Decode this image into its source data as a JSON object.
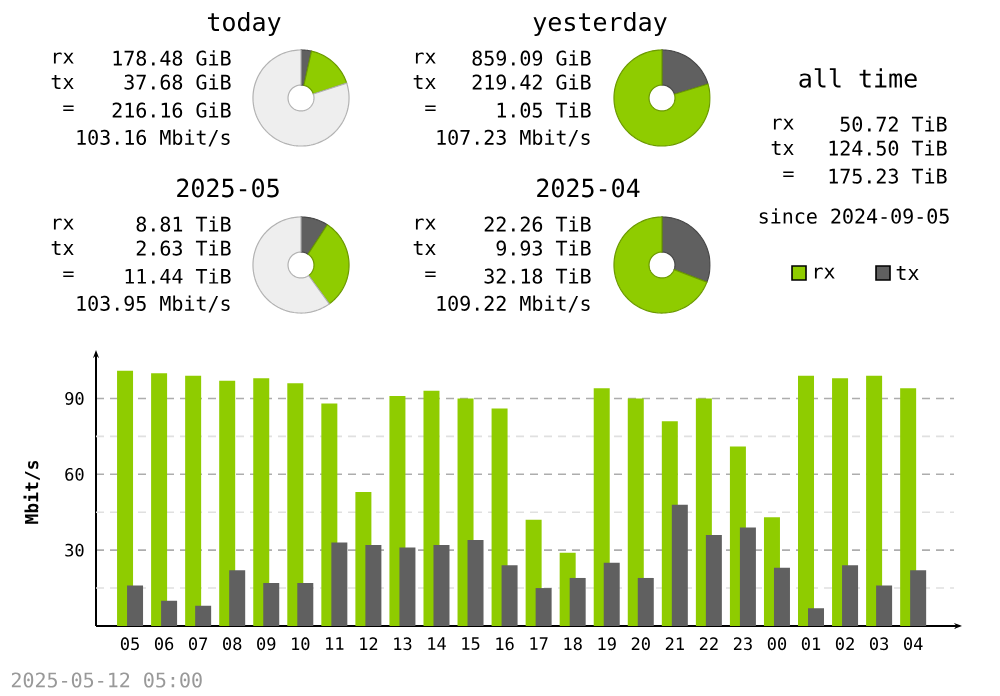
{
  "chart_data": [
    {
      "type": "donut",
      "title": "today",
      "categories": [
        null,
        null,
        null
      ],
      "values": [
        3.5,
        16.5,
        80
      ],
      "colors": [
        "#606060",
        "#8fcc00",
        "#eeeeee"
      ],
      "annotations": [
        "rx",
        "178.48 GiB",
        "tx",
        "37.68 GiB",
        "=",
        "216.16 GiB",
        "103.16 Mbit/s"
      ]
    },
    {
      "type": "donut",
      "title": "yesterday",
      "categories": [
        null,
        null
      ],
      "values": [
        20.3,
        79.7
      ],
      "colors": [
        "#606060",
        "#8fcc00"
      ],
      "annotations": [
        "rx",
        "859.09 GiB",
        "tx",
        "219.42 GiB",
        "=",
        "1.05 TiB",
        "107.23 Mbit/s"
      ]
    },
    {
      "type": "other",
      "title": "all time",
      "annotations": [
        "rx",
        "50.72 TiB",
        "tx",
        "124.50 TiB",
        "=",
        "175.23 TiB",
        "since 2024-09-05"
      ]
    },
    {
      "type": "donut",
      "title": "2025-05",
      "categories": [
        null,
        null,
        null
      ],
      "values": [
        9.2,
        30.8,
        60
      ],
      "colors": [
        "#606060",
        "#8fcc00",
        "#eeeeee"
      ],
      "annotations": [
        "rx",
        "8.81 TiB",
        "tx",
        "2.63 TiB",
        "=",
        "11.44 TiB",
        "103.95 Mbit/s"
      ]
    },
    {
      "type": "donut",
      "title": "2025-04",
      "categories": [
        null,
        null
      ],
      "values": [
        30.8,
        69.2
      ],
      "colors": [
        "#606060",
        "#8fcc00"
      ],
      "annotations": [
        "rx",
        "22.26 TiB",
        "tx",
        "9.93 TiB",
        "=",
        "32.18 TiB",
        "109.22 Mbit/s"
      ]
    },
    {
      "type": "bar",
      "ylabel": "Mbit/s",
      "categories": [
        "05",
        "06",
        "07",
        "08",
        "09",
        "10",
        "11",
        "12",
        "13",
        "14",
        "15",
        "16",
        "17",
        "18",
        "19",
        "20",
        "21",
        "22",
        "23",
        "00",
        "01",
        "02",
        "03",
        "04"
      ],
      "series": [
        {
          "name": "rx",
          "color": "#8fcc00",
          "values": [
            101,
            100,
            99,
            97,
            98,
            96,
            88,
            53,
            91,
            93,
            90,
            86,
            42,
            29,
            94,
            90,
            81,
            90,
            71,
            43,
            99,
            98,
            99,
            94
          ]
        },
        {
          "name": "tx",
          "color": "#606060",
          "values": [
            16,
            10,
            8,
            22,
            17,
            17,
            33,
            32,
            31,
            32,
            34,
            24,
            15,
            19,
            25,
            19,
            48,
            36,
            39,
            23,
            7,
            24,
            16,
            22
          ]
        }
      ],
      "ylim": [
        0,
        106
      ],
      "yticks": [
        {
          "value": 15,
          "label": null
        },
        30,
        {
          "value": 45,
          "label": null
        },
        60,
        {
          "value": 75,
          "label": null
        },
        90
      ],
      "grid": "y",
      "legend": "top right",
      "annotations": [
        "2025-05-12 05:00"
      ]
    }
  ]
}
